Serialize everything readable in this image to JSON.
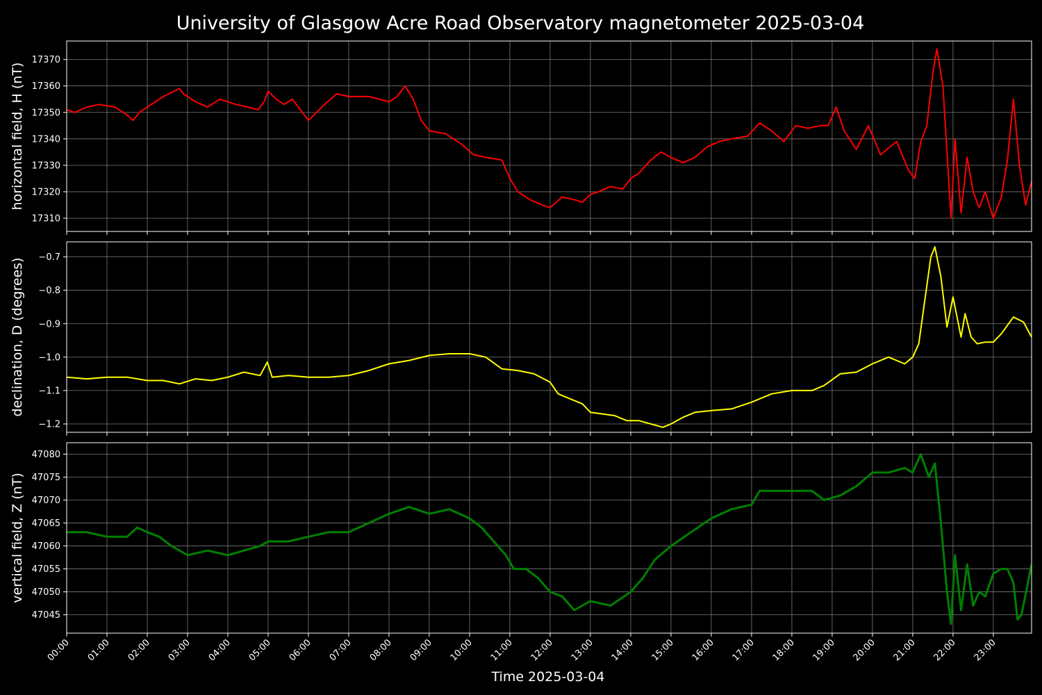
{
  "figure": {
    "title": "University of Glasgow Acre Road Observatory magnetometer 2025-03-04",
    "background": "#000000",
    "text_color": "#ffffff",
    "grid_color": "#7a7a7a"
  },
  "chart_data": [
    {
      "type": "line",
      "ylabel": "horizontal field, H (nT)",
      "xlabel": "",
      "color": "#ff0000",
      "xlim": [
        0,
        23.95
      ],
      "ylim": [
        17305,
        17377
      ],
      "yticks": [
        17310,
        17320,
        17330,
        17340,
        17350,
        17360,
        17370
      ],
      "x": [
        0,
        0.2,
        0.5,
        0.8,
        1.2,
        1.5,
        1.65,
        1.8,
        2.0,
        2.4,
        2.8,
        2.9,
        3.2,
        3.5,
        3.8,
        4.2,
        4.5,
        4.75,
        4.9,
        5.0,
        5.2,
        5.4,
        5.6,
        5.8,
        6.0,
        6.2,
        6.4,
        6.7,
        7.0,
        7.5,
        8.0,
        8.2,
        8.4,
        8.6,
        8.8,
        9.0,
        9.4,
        9.8,
        10.1,
        10.4,
        10.8,
        11.0,
        11.2,
        11.5,
        11.8,
        12.0,
        12.3,
        12.6,
        12.8,
        13.0,
        13.2,
        13.5,
        13.8,
        14.0,
        14.2,
        14.5,
        14.75,
        15.0,
        15.3,
        15.6,
        15.9,
        16.2,
        16.5,
        16.9,
        17.2,
        17.5,
        17.8,
        18.1,
        18.4,
        18.7,
        18.9,
        19.1,
        19.3,
        19.6,
        19.9,
        20.2,
        20.6,
        20.9,
        21.05,
        21.2,
        21.35,
        21.5,
        21.6,
        21.75,
        21.85,
        21.95,
        22.05,
        22.2,
        22.35,
        22.5,
        22.65,
        22.8,
        23.0,
        23.2,
        23.35,
        23.5,
        23.65,
        23.8,
        23.95
      ],
      "y": [
        17351,
        17350,
        17352,
        17353,
        17352,
        17349,
        17347,
        17350,
        17352,
        17356,
        17359,
        17357,
        17354,
        17352,
        17355,
        17353,
        17352,
        17351,
        17354,
        17358,
        17355,
        17353,
        17355,
        17351,
        17347,
        17350,
        17353,
        17357,
        17356,
        17356,
        17354,
        17356,
        17360,
        17355,
        17347,
        17343,
        17342,
        17338,
        17334,
        17333,
        17332,
        17325,
        17320,
        17317,
        17315,
        17314,
        17318,
        17317,
        17316,
        17319,
        17320,
        17322,
        17321,
        17325,
        17327,
        17332,
        17335,
        17333,
        17331,
        17333,
        17337,
        17339,
        17340,
        17341,
        17346,
        17343,
        17339,
        17345,
        17344,
        17345,
        17345,
        17352,
        17343,
        17336,
        17345,
        17334,
        17339,
        17328,
        17325,
        17339,
        17345,
        17365,
        17374,
        17360,
        17335,
        17310,
        17340,
        17312,
        17333,
        17320,
        17314,
        17320,
        17310,
        17318,
        17332,
        17355,
        17330,
        17315,
        17324
      ]
    },
    {
      "type": "line",
      "ylabel": "declination, D (degrees)",
      "xlabel": "",
      "color": "#ffff00",
      "xlim": [
        0,
        23.95
      ],
      "ylim": [
        -1.225,
        -0.655
      ],
      "yticks": [
        -1.2,
        -1.1,
        -1.0,
        -0.9,
        -0.8,
        -0.7
      ],
      "ytick_labels": [
        "−1.2",
        "−1.1",
        "−1.0",
        "−0.9",
        "−0.8",
        "−0.7"
      ],
      "x": [
        0,
        0.5,
        1.0,
        1.5,
        2.0,
        2.4,
        2.8,
        3.2,
        3.6,
        4.0,
        4.4,
        4.8,
        4.98,
        5.1,
        5.5,
        6.0,
        6.5,
        7.0,
        7.5,
        8.0,
        8.5,
        9.0,
        9.5,
        10.0,
        10.4,
        10.8,
        11.2,
        11.6,
        12.0,
        12.2,
        12.5,
        12.8,
        13.0,
        13.3,
        13.6,
        13.9,
        14.2,
        14.5,
        14.8,
        15.0,
        15.3,
        15.6,
        16.0,
        16.5,
        17.0,
        17.5,
        18.0,
        18.5,
        18.8,
        19.2,
        19.6,
        20.0,
        20.4,
        20.8,
        21.0,
        21.15,
        21.3,
        21.45,
        21.55,
        21.7,
        21.85,
        22.0,
        22.1,
        22.2,
        22.3,
        22.45,
        22.6,
        22.8,
        23.0,
        23.2,
        23.5,
        23.75,
        23.95
      ],
      "y": [
        -1.06,
        -1.065,
        -1.06,
        -1.06,
        -1.07,
        -1.07,
        -1.08,
        -1.065,
        -1.07,
        -1.06,
        -1.045,
        -1.055,
        -1.015,
        -1.06,
        -1.055,
        -1.06,
        -1.06,
        -1.055,
        -1.04,
        -1.02,
        -1.01,
        -0.995,
        -0.99,
        -0.99,
        -1.0,
        -1.035,
        -1.04,
        -1.05,
        -1.075,
        -1.11,
        -1.125,
        -1.14,
        -1.165,
        -1.17,
        -1.175,
        -1.19,
        -1.19,
        -1.2,
        -1.21,
        -1.2,
        -1.18,
        -1.165,
        -1.16,
        -1.155,
        -1.135,
        -1.11,
        -1.1,
        -1.1,
        -1.085,
        -1.05,
        -1.045,
        -1.02,
        -1.0,
        -1.02,
        -1.0,
        -0.96,
        -0.83,
        -0.7,
        -0.67,
        -0.76,
        -0.91,
        -0.82,
        -0.88,
        -0.94,
        -0.87,
        -0.94,
        -0.96,
        -0.955,
        -0.955,
        -0.93,
        -0.88,
        -0.895,
        -0.94
      ]
    },
    {
      "type": "line",
      "ylabel": "vertical field, Z (nT)",
      "xlabel": "Time 2025-03-04",
      "color": "#008000",
      "xlim": [
        0,
        23.95
      ],
      "ylim": [
        47041,
        47082.5
      ],
      "yticks": [
        47045,
        47050,
        47055,
        47060,
        47065,
        47070,
        47075,
        47080
      ],
      "x": [
        0,
        0.5,
        1.0,
        1.5,
        1.75,
        2.0,
        2.3,
        2.6,
        3.0,
        3.5,
        4.0,
        4.4,
        4.8,
        5.0,
        5.5,
        6.0,
        6.5,
        7.0,
        7.5,
        8.0,
        8.5,
        9.0,
        9.5,
        10.0,
        10.3,
        10.6,
        10.9,
        11.1,
        11.4,
        11.7,
        12.0,
        12.3,
        12.6,
        13.0,
        13.5,
        14.0,
        14.3,
        14.6,
        15.0,
        15.5,
        16.0,
        16.5,
        17.0,
        17.2,
        17.5,
        18.0,
        18.5,
        18.8,
        19.2,
        19.6,
        20.0,
        20.4,
        20.8,
        21.0,
        21.2,
        21.4,
        21.55,
        21.7,
        21.85,
        21.95,
        22.05,
        22.2,
        22.35,
        22.5,
        22.65,
        22.8,
        23.0,
        23.2,
        23.35,
        23.5,
        23.6,
        23.7,
        23.95
      ],
      "y": [
        47063,
        47063,
        47062,
        47062,
        47064,
        47063,
        47062,
        47060,
        47058,
        47059,
        47058,
        47059,
        47060,
        47061,
        47061,
        47062,
        47063,
        47063,
        47065,
        47067,
        47068.5,
        47067,
        47068,
        47066,
        47064,
        47061,
        47058,
        47055,
        47055,
        47053,
        47050,
        47049,
        47046,
        47048,
        47047,
        47050,
        47053,
        47057,
        47060,
        47063,
        47066,
        47068,
        47069,
        47072,
        47072,
        47072,
        47072,
        47070,
        47071,
        47073,
        47076,
        47076,
        47077,
        47076,
        47080,
        47075,
        47078,
        47065,
        47050,
        47043,
        47058,
        47046,
        47056,
        47047,
        47050,
        47049,
        47054,
        47055,
        47055,
        47052,
        47044,
        47045,
        47056
      ]
    }
  ],
  "x_axis": {
    "label": "Time 2025-03-04",
    "ticks": [
      0,
      1,
      2,
      3,
      4,
      5,
      6,
      7,
      8,
      9,
      10,
      11,
      12,
      13,
      14,
      15,
      16,
      17,
      18,
      19,
      20,
      21,
      22,
      23
    ],
    "tick_labels": [
      "00:00",
      "01:00",
      "02:00",
      "03:00",
      "04:00",
      "05:00",
      "06:00",
      "07:00",
      "08:00",
      "09:00",
      "10:00",
      "11:00",
      "12:00",
      "13:00",
      "14:00",
      "15:00",
      "16:00",
      "17:00",
      "18:00",
      "19:00",
      "20:00",
      "21:00",
      "22:00",
      "23:00"
    ]
  }
}
